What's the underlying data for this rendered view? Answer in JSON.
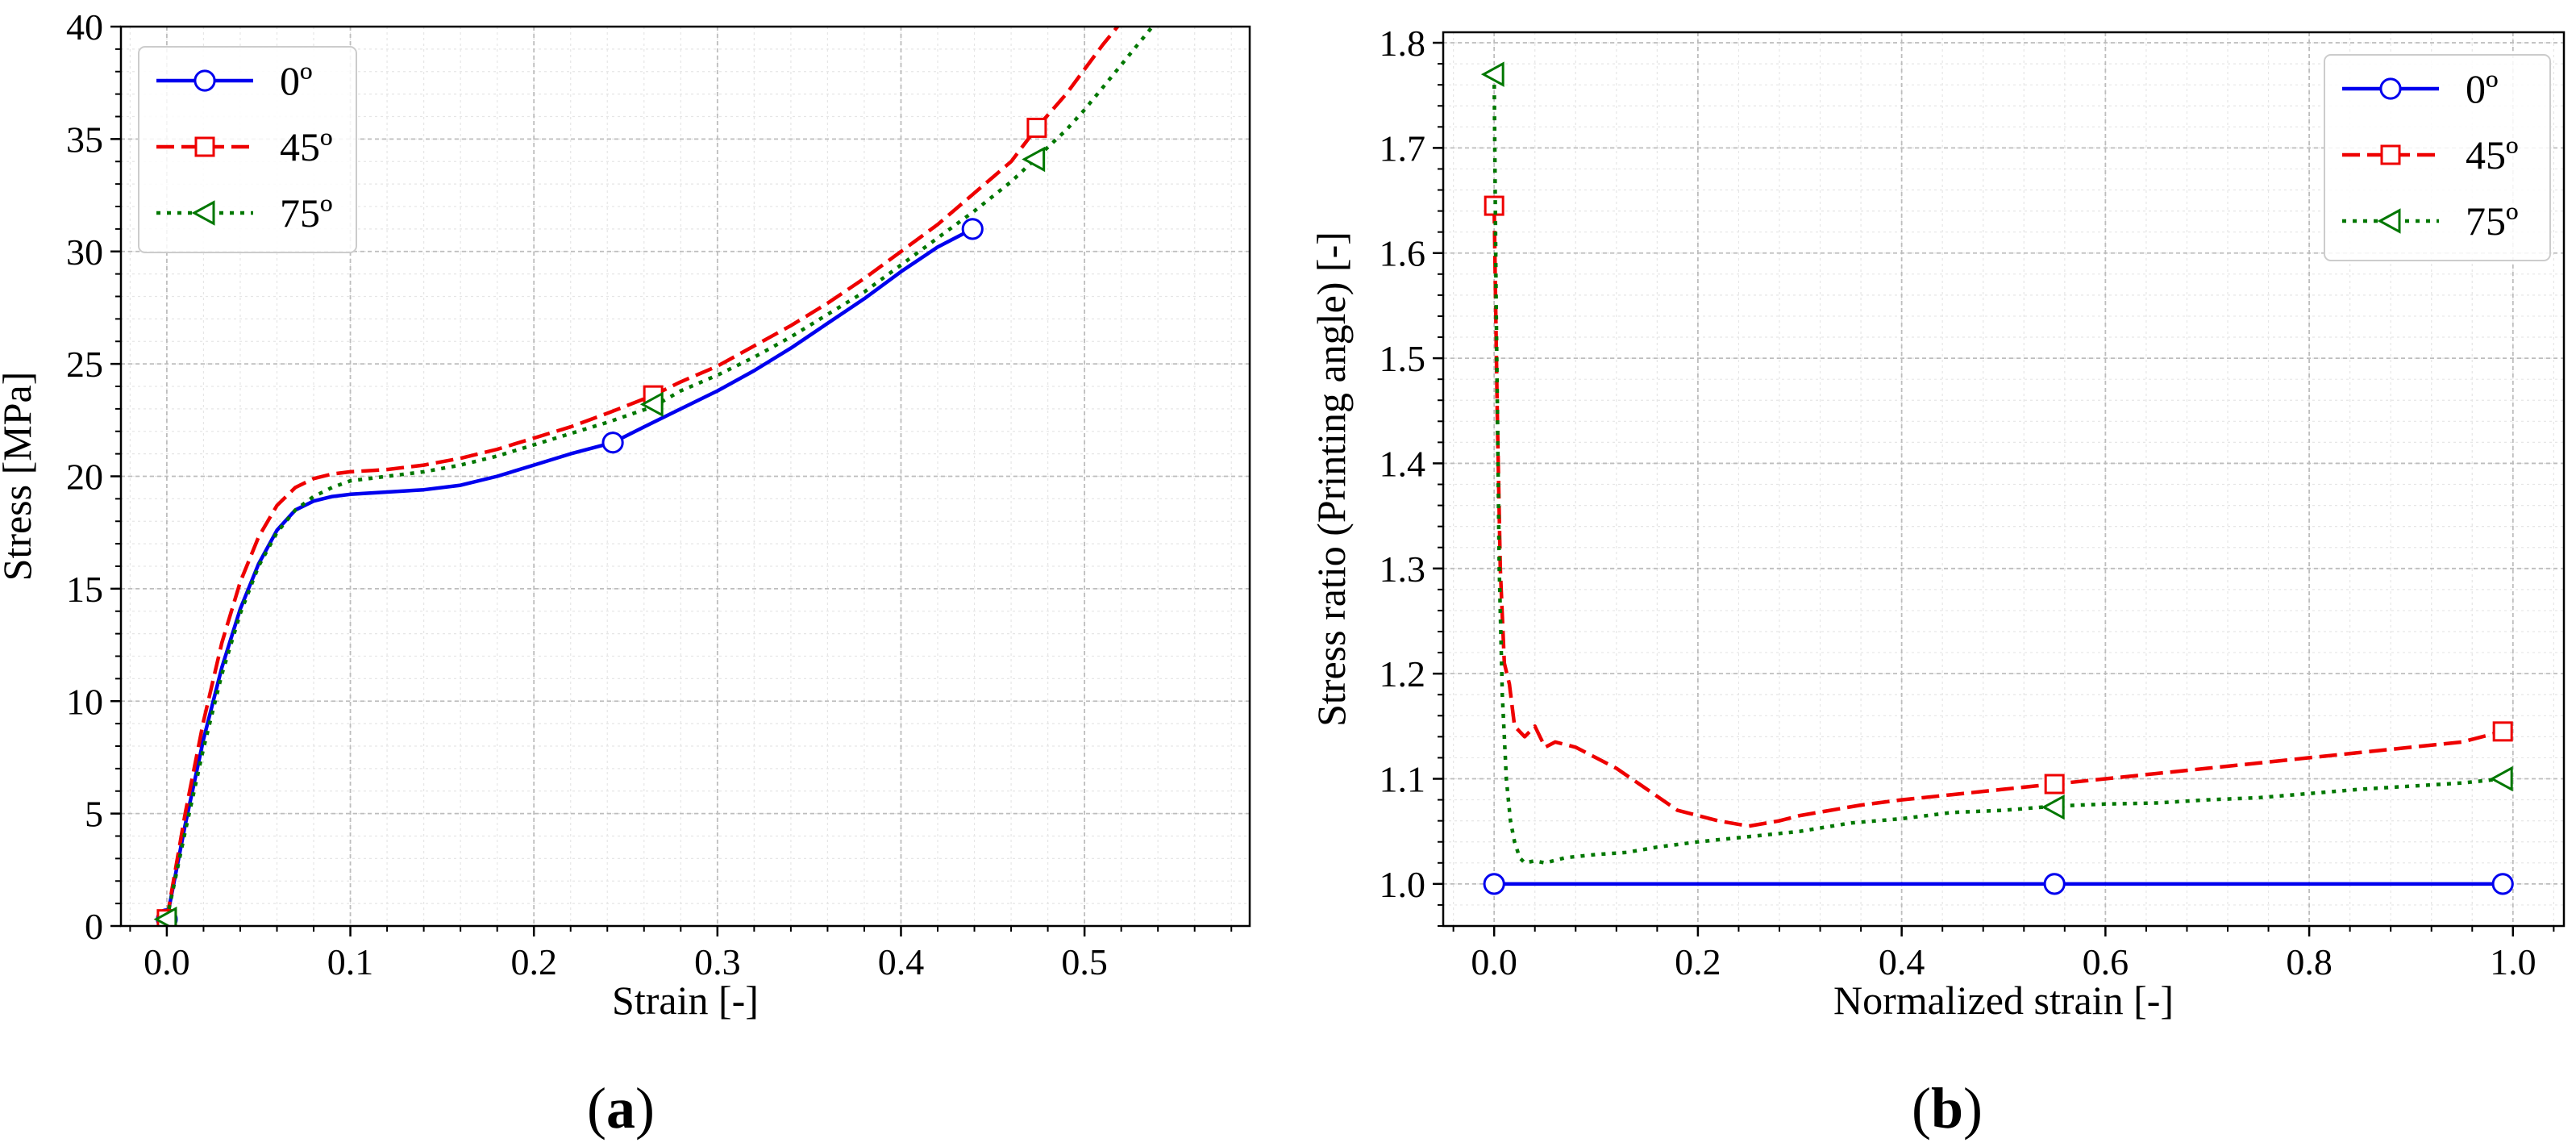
{
  "chart_data": [
    {
      "type": "line",
      "caption": "(a)",
      "caption_open": "(",
      "caption_letter": "a",
      "caption_close": ")",
      "xlabel": "Strain [-]",
      "ylabel": "Stress [MPa]",
      "xlim": [
        -0.025,
        0.59
      ],
      "ylim": [
        0,
        40
      ],
      "xticks": [
        0.0,
        0.1,
        0.2,
        0.3,
        0.4,
        0.5
      ],
      "xtick_labels": [
        "0.0",
        "0.1",
        "0.2",
        "0.3",
        "0.4",
        "0.5"
      ],
      "yticks": [
        0,
        5,
        10,
        15,
        20,
        25,
        30,
        35,
        40
      ],
      "ytick_labels": [
        "0",
        "5",
        "10",
        "15",
        "20",
        "25",
        "30",
        "35",
        "40"
      ],
      "grid": true,
      "legend_position": "top-left",
      "series": [
        {
          "name": "0º",
          "color": "#0000ee",
          "dash": "solid",
          "marker": "circle",
          "x": [
            0.0,
            0.01,
            0.02,
            0.03,
            0.04,
            0.05,
            0.06,
            0.07,
            0.08,
            0.09,
            0.1,
            0.12,
            0.14,
            0.16,
            0.18,
            0.2,
            0.22,
            0.243,
            0.26,
            0.28,
            0.3,
            0.32,
            0.34,
            0.36,
            0.38,
            0.4,
            0.42,
            0.439
          ],
          "y": [
            0.3,
            4.5,
            8.3,
            11.5,
            14.1,
            16.1,
            17.6,
            18.5,
            18.9,
            19.1,
            19.2,
            19.3,
            19.4,
            19.6,
            20.0,
            20.5,
            21.0,
            21.5,
            22.2,
            23.0,
            23.8,
            24.7,
            25.7,
            26.8,
            27.9,
            29.1,
            30.2,
            31.0
          ],
          "marker_points": [
            [
              0.0,
              0.3
            ],
            [
              0.243,
              21.5
            ],
            [
              0.439,
              31.0
            ]
          ]
        },
        {
          "name": "45º",
          "color": "#ee0000",
          "dash": "dashed",
          "marker": "square",
          "x": [
            0.0,
            0.01,
            0.02,
            0.03,
            0.04,
            0.05,
            0.06,
            0.07,
            0.08,
            0.09,
            0.1,
            0.12,
            0.14,
            0.16,
            0.18,
            0.2,
            0.22,
            0.24,
            0.265,
            0.28,
            0.3,
            0.32,
            0.34,
            0.36,
            0.38,
            0.4,
            0.42,
            0.44,
            0.46,
            0.474,
            0.49,
            0.5,
            0.51,
            0.52
          ],
          "y": [
            0.3,
            5.0,
            9.1,
            12.6,
            15.3,
            17.3,
            18.7,
            19.5,
            19.9,
            20.1,
            20.2,
            20.3,
            20.5,
            20.8,
            21.2,
            21.7,
            22.2,
            22.8,
            23.6,
            24.2,
            24.9,
            25.8,
            26.7,
            27.7,
            28.8,
            30.0,
            31.2,
            32.6,
            34.0,
            35.5,
            37.0,
            38.1,
            39.2,
            40.2
          ],
          "marker_points": [
            [
              0.0,
              0.3
            ],
            [
              0.265,
              23.6
            ],
            [
              0.474,
              35.5
            ]
          ]
        },
        {
          "name": "75º",
          "color": "#007700",
          "dash": "dotted",
          "marker": "triangle-left",
          "x": [
            0.0,
            0.01,
            0.02,
            0.03,
            0.04,
            0.05,
            0.06,
            0.07,
            0.08,
            0.09,
            0.1,
            0.12,
            0.14,
            0.16,
            0.18,
            0.2,
            0.22,
            0.24,
            0.265,
            0.28,
            0.3,
            0.32,
            0.34,
            0.36,
            0.38,
            0.4,
            0.42,
            0.44,
            0.46,
            0.473,
            0.49,
            0.5,
            0.51,
            0.52,
            0.53,
            0.54
          ],
          "y": [
            0.3,
            4.2,
            7.9,
            11.2,
            13.9,
            16.0,
            17.5,
            18.5,
            19.1,
            19.5,
            19.8,
            20.0,
            20.2,
            20.5,
            20.9,
            21.4,
            21.9,
            22.4,
            23.1,
            23.8,
            24.5,
            25.3,
            26.2,
            27.2,
            28.2,
            29.4,
            30.6,
            31.8,
            33.1,
            34.1,
            35.4,
            36.3,
            37.3,
            38.3,
            39.3,
            40.3
          ],
          "marker_points": [
            [
              0.0,
              0.3
            ],
            [
              0.265,
              23.2
            ],
            [
              0.473,
              34.1
            ]
          ]
        }
      ]
    },
    {
      "type": "line",
      "caption": "(b)",
      "caption_open": "(",
      "caption_letter": "b",
      "caption_close": ")",
      "xlabel": "Normalized strain [-]",
      "ylabel": "Stress ratio (Printing angle) [-]",
      "xlim": [
        -0.05,
        1.05
      ],
      "ylim": [
        0.96,
        1.81
      ],
      "xticks": [
        0.0,
        0.2,
        0.4,
        0.6,
        0.8,
        1.0
      ],
      "xtick_labels": [
        "0.0",
        "0.2",
        "0.4",
        "0.6",
        "0.8",
        "1.0"
      ],
      "yticks": [
        1.0,
        1.1,
        1.2,
        1.3,
        1.4,
        1.5,
        1.6,
        1.7,
        1.8
      ],
      "ytick_labels": [
        "1.0",
        "1.1",
        "1.2",
        "1.3",
        "1.4",
        "1.5",
        "1.6",
        "1.7",
        "1.8"
      ],
      "grid": true,
      "legend_position": "top-right",
      "series": [
        {
          "name": "0º",
          "color": "#0000ee",
          "dash": "solid",
          "marker": "circle",
          "x": [
            0.0,
            0.55,
            0.99
          ],
          "y": [
            1.0,
            1.0,
            1.0
          ],
          "marker_points": [
            [
              0.0,
              1.0
            ],
            [
              0.55,
              1.0
            ],
            [
              0.99,
              1.0
            ]
          ]
        },
        {
          "name": "45º",
          "color": "#ee0000",
          "dash": "dashed",
          "marker": "square",
          "x": [
            0.0,
            0.003,
            0.006,
            0.01,
            0.015,
            0.02,
            0.03,
            0.04,
            0.05,
            0.06,
            0.08,
            0.1,
            0.12,
            0.15,
            0.18,
            0.2,
            0.22,
            0.25,
            0.28,
            0.3,
            0.33,
            0.36,
            0.4,
            0.45,
            0.5,
            0.55,
            0.6,
            0.65,
            0.7,
            0.75,
            0.8,
            0.85,
            0.9,
            0.95,
            0.99
          ],
          "y": [
            1.645,
            1.45,
            1.3,
            1.21,
            1.19,
            1.15,
            1.14,
            1.15,
            1.13,
            1.135,
            1.13,
            1.12,
            1.11,
            1.09,
            1.07,
            1.065,
            1.06,
            1.055,
            1.06,
            1.065,
            1.07,
            1.075,
            1.08,
            1.085,
            1.09,
            1.095,
            1.1,
            1.105,
            1.11,
            1.115,
            1.12,
            1.125,
            1.13,
            1.135,
            1.145
          ],
          "marker_points": [
            [
              0.0,
              1.645
            ],
            [
              0.55,
              1.095
            ],
            [
              0.99,
              1.145
            ]
          ]
        },
        {
          "name": "75º",
          "color": "#007700",
          "dash": "dotted",
          "marker": "triangle-left",
          "x": [
            0.0,
            0.002,
            0.005,
            0.008,
            0.012,
            0.016,
            0.02,
            0.025,
            0.03,
            0.04,
            0.05,
            0.07,
            0.1,
            0.13,
            0.16,
            0.2,
            0.25,
            0.3,
            0.35,
            0.4,
            0.45,
            0.5,
            0.55,
            0.6,
            0.65,
            0.7,
            0.75,
            0.8,
            0.85,
            0.9,
            0.95,
            0.99
          ],
          "y": [
            1.77,
            1.55,
            1.3,
            1.18,
            1.1,
            1.06,
            1.04,
            1.025,
            1.02,
            1.022,
            1.02,
            1.025,
            1.028,
            1.03,
            1.035,
            1.04,
            1.045,
            1.05,
            1.058,
            1.062,
            1.068,
            1.07,
            1.074,
            1.076,
            1.077,
            1.08,
            1.082,
            1.086,
            1.09,
            1.093,
            1.096,
            1.1
          ],
          "marker_points": [
            [
              0.0,
              1.77
            ],
            [
              0.55,
              1.073
            ],
            [
              0.99,
              1.1
            ]
          ]
        }
      ]
    }
  ]
}
